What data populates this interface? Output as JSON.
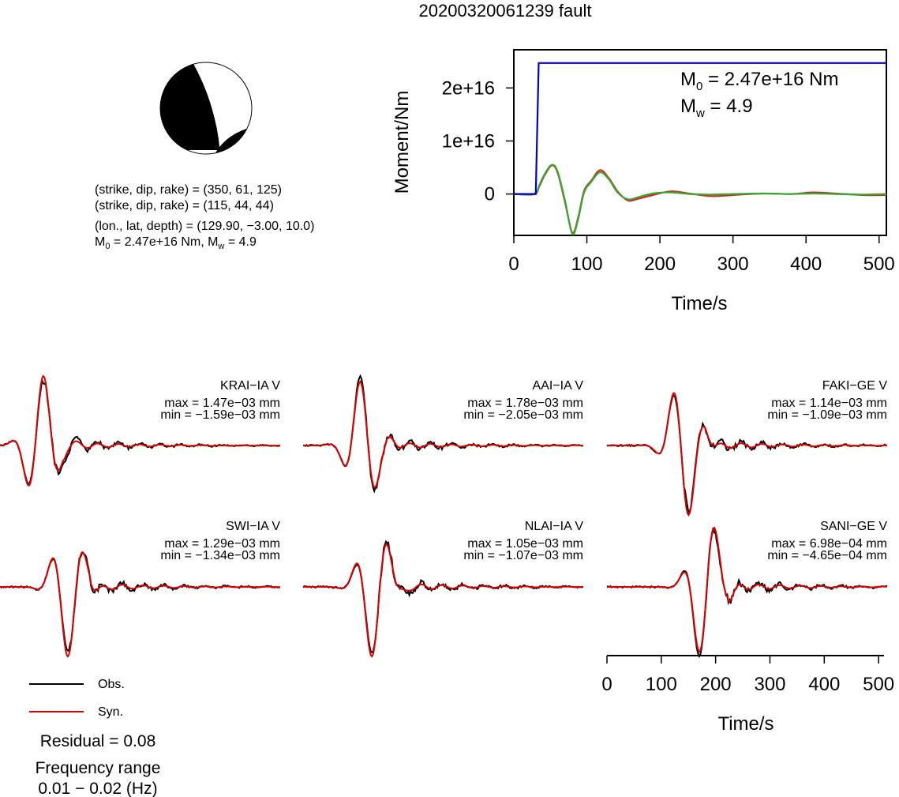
{
  "title": "20200320061239 fault",
  "beachball": {
    "plane1": "(strike, dip, rake) = (350, 61, 125)",
    "plane2": "(strike, dip, rake) = (115, 44, 44)",
    "location": "(lon., lat, depth) = (129.90, −3.00, 10.0)",
    "m0_prefix": "M",
    "m0_sub": "0",
    "m0_text": " = 2.47e+16 Nm, M",
    "mw_sub": "w",
    "mw_text": " = 4.9"
  },
  "colors": {
    "observed": "#000000",
    "synthetic": "#dd0000",
    "moment_cumulative": "#0000cc",
    "moment_rate_red": "#dd2222",
    "moment_rate_green": "#33aa33"
  },
  "chart_data": [
    {
      "type": "line",
      "name": "moment_function",
      "xlabel": "Time/s",
      "ylabel": "Moment/Nm",
      "xlim": [
        0,
        510
      ],
      "ylim": [
        -7800000000000000.0,
        2.72e+16
      ],
      "x_ticks": [
        "0",
        "100",
        "200",
        "300",
        "400",
        "500"
      ],
      "x_tick_values": [
        0,
        100,
        200,
        300,
        400,
        500
      ],
      "y_ticks": [
        "0",
        "1e+16",
        "2e+16"
      ],
      "y_tick_values": [
        0,
        1e+16,
        2e+16
      ],
      "annotation_m0": {
        "prefix": "M",
        "sub": "0",
        "text": " = 2.47e+16 Nm"
      },
      "annotation_mw": {
        "prefix": "M",
        "sub": "w",
        "text": " = 4.9"
      },
      "series": [
        {
          "color": "#0000cc",
          "x": [
            0,
            30,
            34,
            510
          ],
          "y": [
            0,
            0,
            2.47e+16,
            2.47e+16
          ]
        },
        {
          "color": "#dd2222",
          "x": [
            0,
            28,
            35,
            42,
            52,
            60,
            70,
            80,
            88,
            96,
            106,
            118,
            130,
            142,
            156,
            170,
            190,
            215,
            240,
            270,
            300,
            340,
            380,
            410,
            440,
            480,
            510
          ],
          "y": [
            0,
            -50000000000000.0,
            1500000000000000.0,
            3500000000000000.0,
            5400000000000000.0,
            4000000000000000.0,
            -1500000000000000.0,
            -7300000000000000.0,
            -4500000000000000.0,
            500000000000000.0,
            2500000000000000.0,
            4500000000000000.0,
            3000000000000000.0,
            500000000000000.0,
            -1200000000000000.0,
            -900000000000000.0,
            -200000000000000.0,
            500000000000000.0,
            100000000000000.0,
            -400000000000000.0,
            -200000000000000.0,
            100000000000000.0,
            0.0,
            300000000000000.0,
            100000000000000.0,
            -200000000000000.0,
            -200000000000000.0
          ]
        },
        {
          "color": "#33aa33",
          "x": [
            0,
            28,
            35,
            42,
            52,
            60,
            70,
            80,
            88,
            96,
            106,
            118,
            130,
            142,
            156,
            170,
            190,
            215,
            240,
            270,
            300,
            340,
            380,
            410,
            440,
            480,
            510
          ],
          "y": [
            0,
            0,
            1700000000000000.0,
            3700000000000000.0,
            5500000000000000.0,
            4200000000000000.0,
            -1200000000000000.0,
            -7500000000000000.0,
            -4800000000000000.0,
            200000000000000.0,
            2300000000000000.0,
            4100000000000000.0,
            2800000000000000.0,
            300000000000000.0,
            -1000000000000000.0,
            -600000000000000.0,
            100000000000000.0,
            300000000000000.0,
            0.0,
            -100000000000000.0,
            0.0,
            100000000000000.0,
            0.0,
            100000000000000.0,
            0.0,
            -100000000000000.0,
            0.0
          ]
        }
      ]
    },
    {
      "type": "line",
      "name": "waveforms",
      "xlabel": "Time/s",
      "xlim": [
        0,
        510
      ],
      "x_ticks": [
        "0",
        "100",
        "200",
        "300",
        "400",
        "500"
      ],
      "x_tick_values": [
        0,
        100,
        200,
        300,
        400,
        500
      ],
      "legend": [
        {
          "label": "Obs.",
          "color": "#000000"
        },
        {
          "label": "Syn.",
          "color": "#dd0000"
        }
      ],
      "residual": "Residual = 0.08",
      "frequency_label": "Frequency range",
      "frequency_value": "0.01 − 0.02 (Hz)",
      "stations": [
        {
          "label": "KRAI−IA V",
          "max": "max = 1.47e−03 mm",
          "min": "min = −1.59e−03 mm",
          "amp_max": 0.00147,
          "amp_min": -0.00159,
          "seed": 1.1,
          "pulse_t": 75
        },
        {
          "label": "AAI−IA V",
          "max": "max = 1.78e−03 mm",
          "min": "min = −2.05e−03 mm",
          "amp_max": 0.00178,
          "amp_min": -0.00205,
          "seed": 2.3,
          "pulse_t": 110
        },
        {
          "label": "FAKI−GE V",
          "max": "max = 1.14e−03 mm",
          "min": "min = −1.09e−03 mm",
          "amp_max": 0.00114,
          "amp_min": -0.00109,
          "seed": 3.7,
          "pulse_t": 140
        },
        {
          "label": "SWI−IA V",
          "max": "max = 1.29e−03 mm",
          "min": "min = −1.34e−03 mm",
          "amp_max": 0.00129,
          "amp_min": -0.00134,
          "seed": 4.9,
          "pulse_t": 125
        },
        {
          "label": "NLAI−IA V",
          "max": "max = 1.05e−03 mm",
          "min": "min = −1.07e−03 mm",
          "amp_max": 0.00105,
          "amp_min": -0.00107,
          "seed": 5.3,
          "pulse_t": 130
        },
        {
          "label": "SANI−GE V",
          "max": "max = 6.98e−04 mm",
          "min": "min = −4.65e−04 mm",
          "amp_max": 0.000698,
          "amp_min": -0.000465,
          "seed": 6.1,
          "pulse_t": 180
        }
      ]
    }
  ]
}
